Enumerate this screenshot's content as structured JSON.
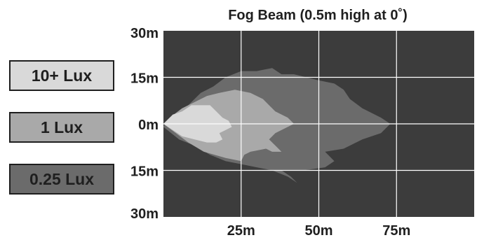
{
  "chart_data": {
    "type": "area",
    "title": "Fog Beam (0.5m high at 0˚)",
    "xlabel": "",
    "ylabel": "",
    "x_ticks": [
      "25m",
      "50m",
      "75m"
    ],
    "y_ticks": [
      "30m",
      "15m",
      "0m",
      "15m",
      "30m"
    ],
    "xlim": [
      0,
      100
    ],
    "ylim": [
      -30,
      30
    ],
    "grid": true,
    "legend_position": "left",
    "background_color": "#3c3c3c",
    "series": [
      {
        "name": "0.25 Lux",
        "color": "#6b6b6b",
        "points": [
          [
            0,
            -1
          ],
          [
            5,
            -5
          ],
          [
            10,
            -7
          ],
          [
            15,
            -10
          ],
          [
            20,
            -12
          ],
          [
            25,
            -13
          ],
          [
            30,
            -14
          ],
          [
            35,
            -15
          ],
          [
            40,
            -17
          ],
          [
            43,
            -19
          ],
          [
            41,
            -17
          ],
          [
            38,
            -15
          ],
          [
            45,
            -15
          ],
          [
            52,
            -14
          ],
          [
            55,
            -12
          ],
          [
            52,
            -9
          ],
          [
            58,
            -8
          ],
          [
            64,
            -5
          ],
          [
            70,
            -3
          ],
          [
            73,
            0
          ],
          [
            70,
            2
          ],
          [
            64,
            5
          ],
          [
            60,
            8
          ],
          [
            58,
            11
          ],
          [
            55,
            13
          ],
          [
            50,
            14
          ],
          [
            42,
            16
          ],
          [
            38,
            16
          ],
          [
            35,
            18
          ],
          [
            30,
            17
          ],
          [
            25,
            17
          ],
          [
            20,
            15
          ],
          [
            16,
            12
          ],
          [
            12,
            10
          ],
          [
            8,
            6
          ],
          [
            4,
            3
          ],
          [
            1,
            1
          ]
        ]
      },
      {
        "name": "1 Lux",
        "color": "#a9a9a9",
        "points": [
          [
            0,
            0
          ],
          [
            4,
            -3
          ],
          [
            8,
            -6
          ],
          [
            13,
            -9
          ],
          [
            20,
            -11
          ],
          [
            25,
            -12
          ],
          [
            26,
            -10
          ],
          [
            28,
            -9
          ],
          [
            33,
            -8
          ],
          [
            35,
            -9
          ],
          [
            38,
            -9
          ],
          [
            36,
            -7
          ],
          [
            34,
            -5
          ],
          [
            36,
            -3
          ],
          [
            40,
            -1
          ],
          [
            42,
            0
          ],
          [
            40,
            2
          ],
          [
            36,
            4
          ],
          [
            34,
            6
          ],
          [
            32,
            8
          ],
          [
            28,
            10
          ],
          [
            23,
            11
          ],
          [
            18,
            10
          ],
          [
            14,
            9
          ],
          [
            10,
            7
          ],
          [
            6,
            5
          ],
          [
            2,
            2
          ]
        ]
      },
      {
        "name": "10+ Lux",
        "color": "#d9d9d9",
        "points": [
          [
            0,
            0
          ],
          [
            3,
            -2
          ],
          [
            6,
            -4
          ],
          [
            10,
            -5
          ],
          [
            14,
            -6
          ],
          [
            17,
            -6
          ],
          [
            19,
            -5
          ],
          [
            18,
            -3
          ],
          [
            20,
            -2
          ],
          [
            22,
            -1
          ],
          [
            21,
            1
          ],
          [
            19,
            2
          ],
          [
            17,
            4
          ],
          [
            15,
            6
          ],
          [
            12,
            6
          ],
          [
            9,
            6
          ],
          [
            6,
            4
          ],
          [
            3,
            3
          ],
          [
            1,
            1
          ]
        ]
      }
    ],
    "legend": [
      {
        "label": "10+ Lux",
        "color": "#d9d9d9"
      },
      {
        "label": "1 Lux",
        "color": "#a9a9a9"
      },
      {
        "label": "0.25 Lux",
        "color": "#6b6b6b"
      }
    ]
  }
}
